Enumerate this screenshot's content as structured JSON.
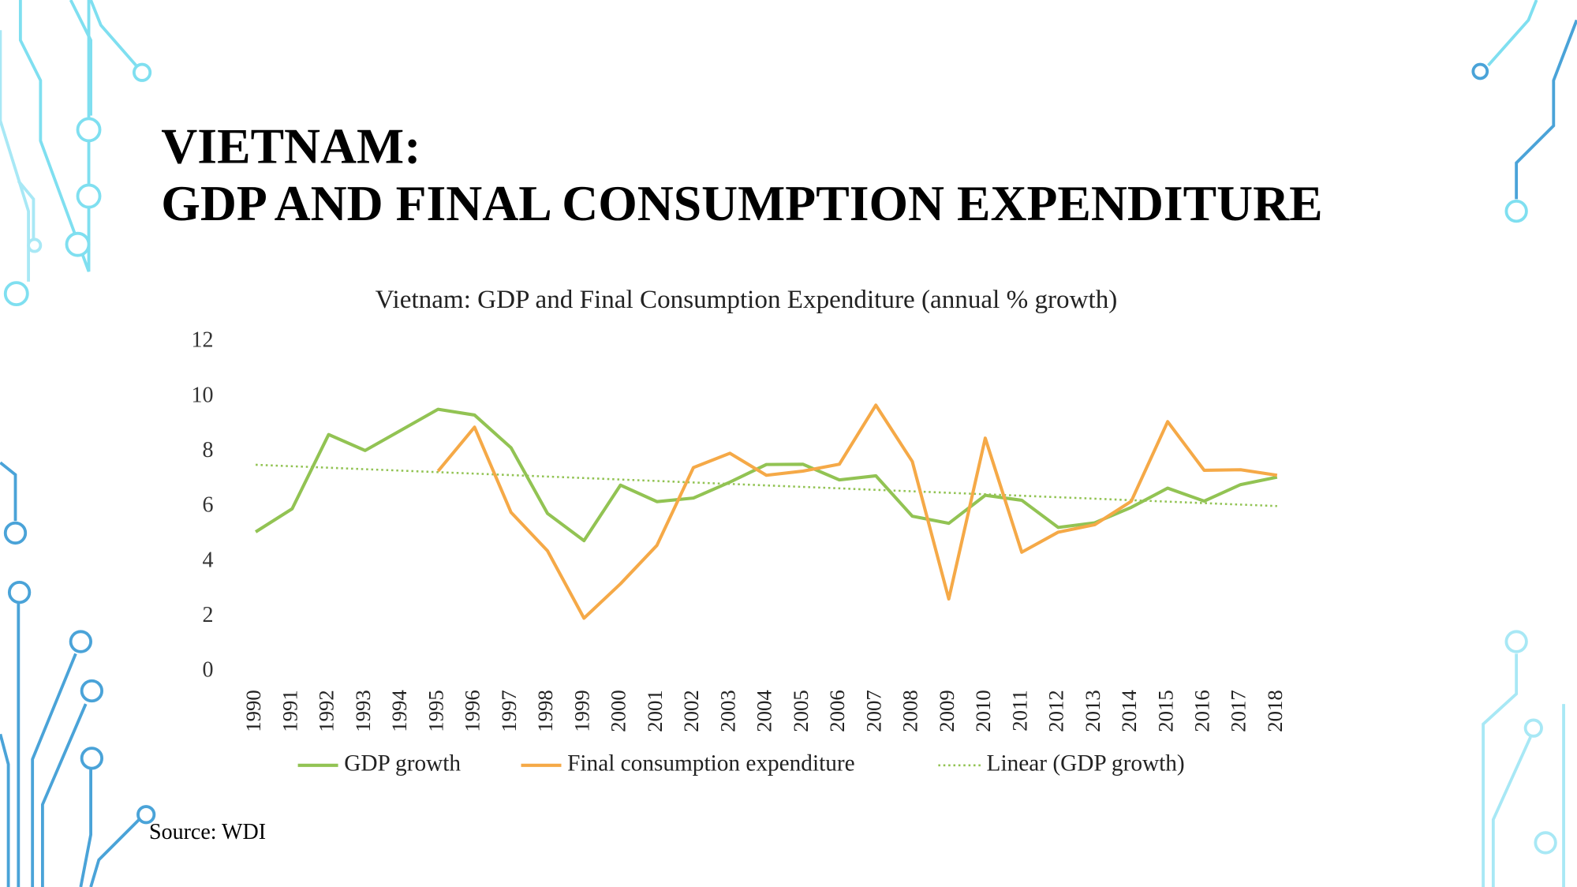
{
  "header": {
    "title_lines": [
      "VIETNAM:",
      "GDP AND FINAL CONSUMPTION EXPENDITURE"
    ]
  },
  "chart_data": {
    "type": "line",
    "title": "Vietnam: GDP and Final Consumption Expenditure (annual % growth)",
    "categories": [
      "1990",
      "1991",
      "1992",
      "1993",
      "1994",
      "1995",
      "1996",
      "1997",
      "1998",
      "1999",
      "2000",
      "2001",
      "2002",
      "2003",
      "2004",
      "2005",
      "2006",
      "2007",
      "2008",
      "2009",
      "2010",
      "2011",
      "2012",
      "2013",
      "2014",
      "2015",
      "2016",
      "2017",
      "2018"
    ],
    "series": [
      {
        "name": "GDP growth",
        "color": "#92c353",
        "values": [
          5.09,
          5.93,
          8.63,
          8.05,
          8.8,
          9.55,
          9.34,
          8.15,
          5.76,
          4.77,
          6.79,
          6.19,
          6.32,
          6.9,
          7.54,
          7.55,
          6.98,
          7.13,
          5.66,
          5.4,
          6.42,
          6.24,
          5.25,
          5.42,
          5.98,
          6.68,
          6.21,
          6.81,
          7.08
        ]
      },
      {
        "name": "Final consumption expenditure",
        "color": "#f5a947",
        "values": [
          null,
          null,
          null,
          null,
          null,
          7.3,
          8.9,
          5.8,
          4.4,
          1.95,
          3.2,
          4.6,
          7.43,
          7.95,
          7.15,
          7.3,
          7.55,
          9.7,
          7.65,
          2.65,
          8.5,
          4.35,
          5.08,
          5.35,
          6.2,
          9.1,
          7.33,
          7.35,
          7.15
        ]
      }
    ],
    "trendline": {
      "name": "Linear (GDP growth)",
      "of_series": 0,
      "color": "#92c353"
    },
    "ylim": [
      0,
      12
    ],
    "yticks": [
      0,
      2,
      4,
      6,
      8,
      10,
      12
    ],
    "grid": false
  },
  "source": "Source: WDI"
}
